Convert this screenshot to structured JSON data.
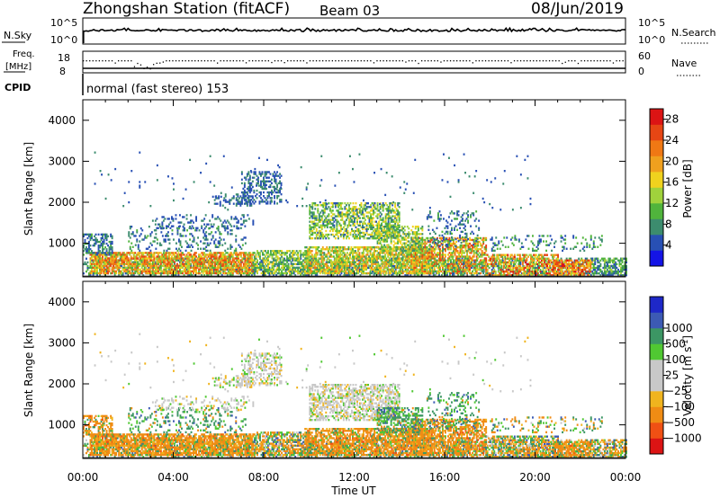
{
  "header": {
    "station": "Zhongshan Station (fitACF)",
    "beam": "Beam 03",
    "date": "08/Jun/2019"
  },
  "colors": {
    "power": [
      "#1414e6",
      "#2850b4",
      "#3c8c6e",
      "#50b43c",
      "#a0d23c",
      "#f0d21e",
      "#f0a01e",
      "#f07814",
      "#e64614",
      "#dc1414"
    ],
    "velocity": [
      "#dc1414",
      "#f05014",
      "#f08c14",
      "#f0b41e",
      "#c8c8c8",
      "#c8c8c8",
      "#50c832",
      "#3c9664",
      "#3c5ab4",
      "#1e28c8"
    ],
    "background": "#ffffff",
    "ink": "#000000"
  },
  "chart_data": [
    {
      "type": "line",
      "panel": "noise",
      "left_label": "N.Sky",
      "right_label": "N.Search",
      "left_ticks": [
        "10^5",
        "10^0"
      ],
      "right_ticks": [
        "10^5",
        "10^0"
      ],
      "x_range_hours": [
        0,
        24
      ]
    },
    {
      "type": "scatter",
      "panel": "frequency_nave",
      "left_label": "Freq. [MHz]",
      "right_label": "Nave",
      "left_ticks": [
        "18",
        "8"
      ],
      "right_ticks": [
        "60",
        "0"
      ],
      "freq_range_mhz": [
        8,
        18
      ],
      "nave_range": [
        0,
        60
      ]
    },
    {
      "type": "text",
      "panel": "cpid",
      "label": "CPID",
      "text": "normal (fast stereo) 153"
    },
    {
      "type": "heatmap",
      "panel": "power",
      "ylabel": "Slant Range [km]",
      "yticks": [
        "1000",
        "2000",
        "3000",
        "4000"
      ],
      "ylim": [
        180,
        4500
      ],
      "colorbar_label": "Power [dB]",
      "colorbar_ticks": [
        "4",
        "8",
        "12",
        "16",
        "20",
        "24",
        "28"
      ],
      "colorbar_range": [
        0,
        30
      ]
    },
    {
      "type": "heatmap",
      "panel": "velocity",
      "ylabel": "Slant Range [km]",
      "yticks": [
        "1000",
        "2000",
        "3000",
        "4000"
      ],
      "ylim": [
        180,
        4500
      ],
      "colorbar_label": "Velocity [m s-1]",
      "colorbar_ticks": [
        "-1000",
        "-500",
        "-100",
        "-25",
        "25",
        "100",
        "500",
        "1000"
      ],
      "xlabel": "Time UT",
      "xticks": [
        "00:00",
        "04:00",
        "08:00",
        "12:00",
        "16:00",
        "20:00",
        "00:00"
      ],
      "x_range_hours": [
        0,
        24
      ]
    }
  ]
}
